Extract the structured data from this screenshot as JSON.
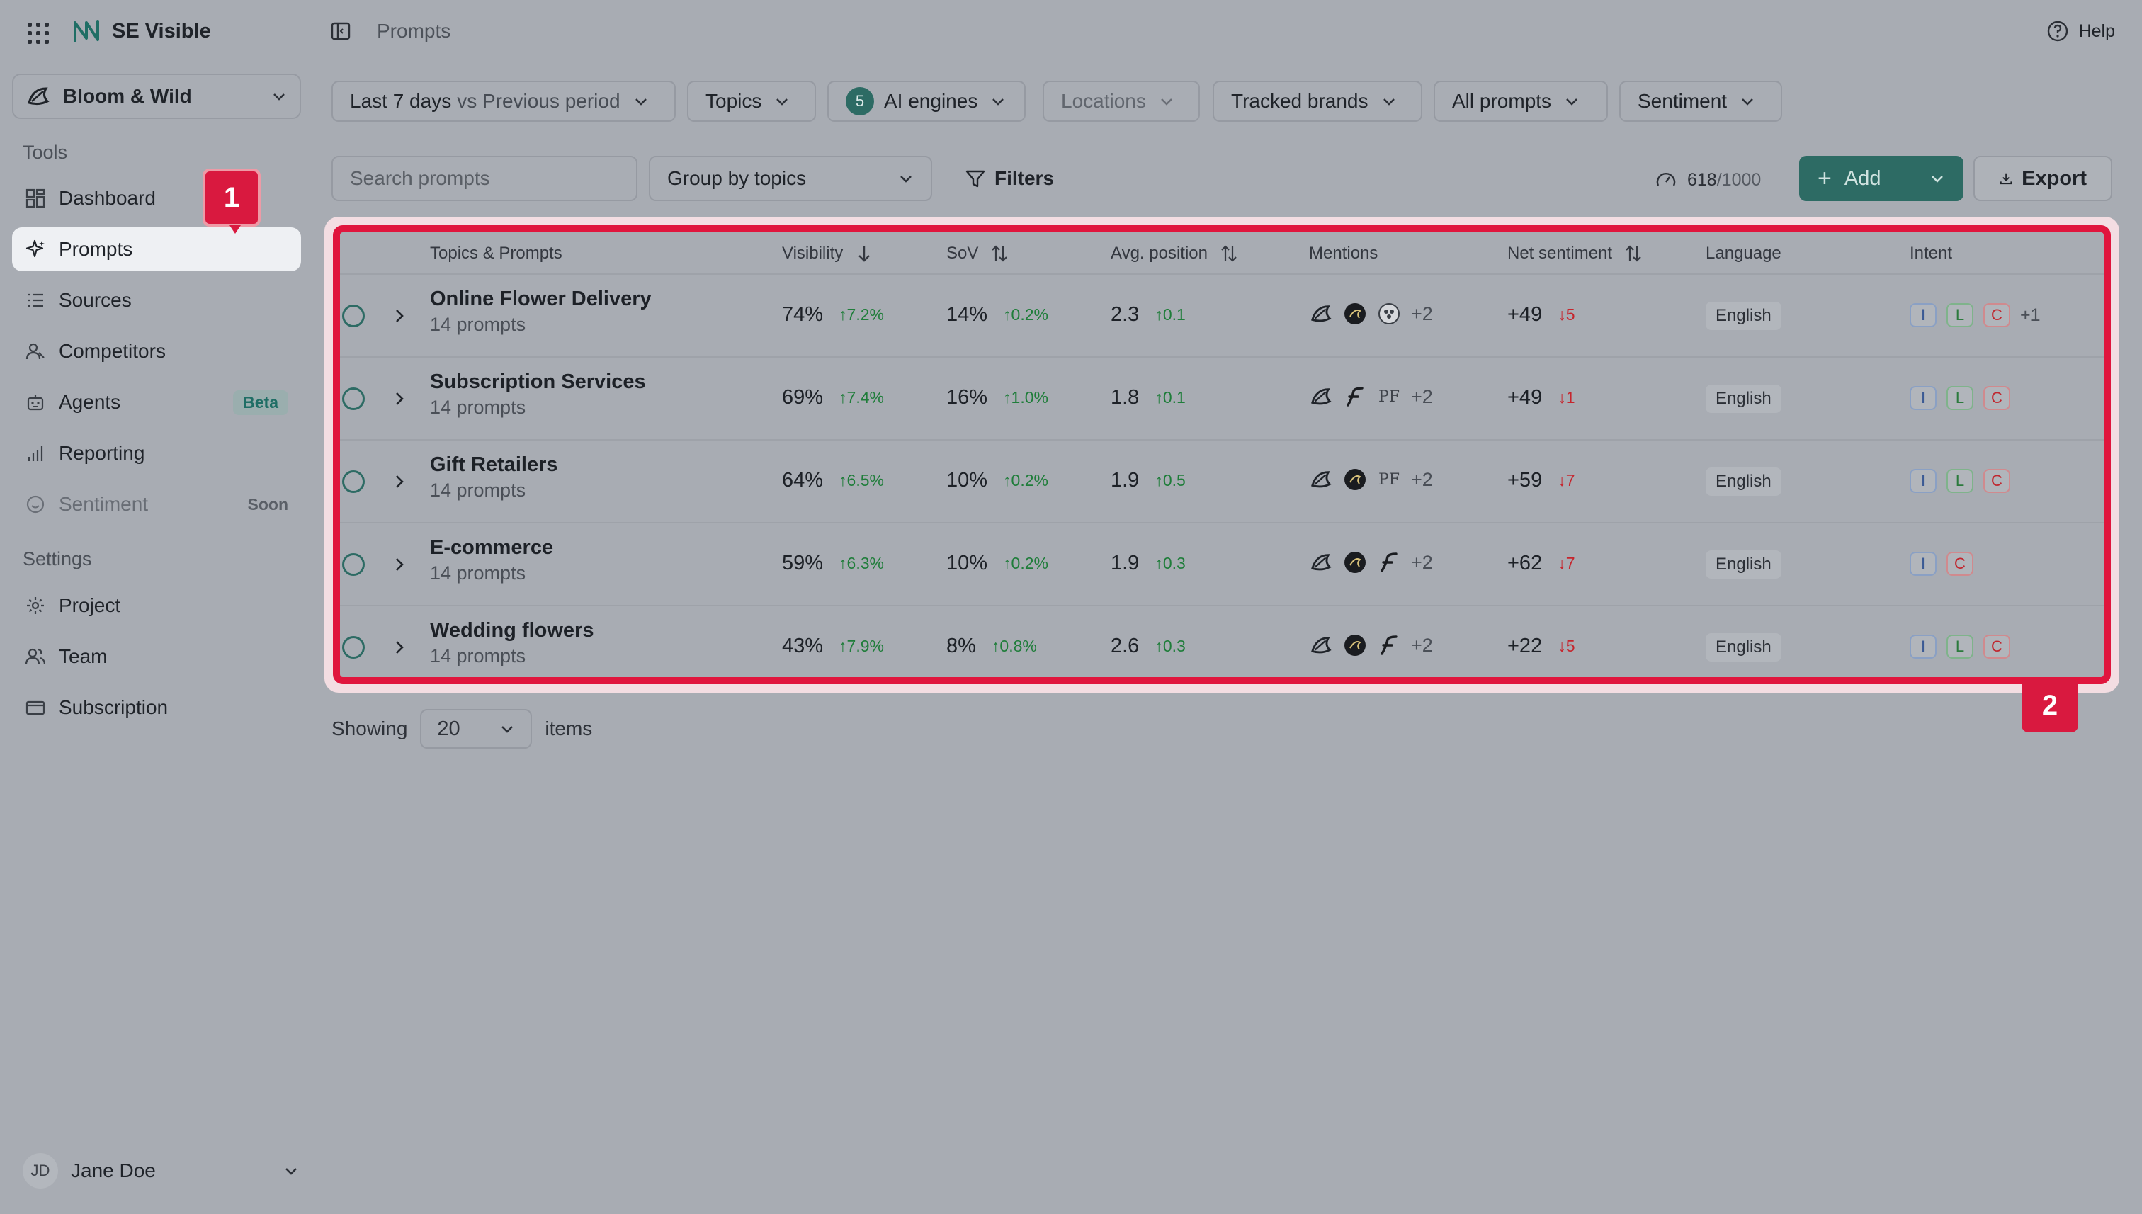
{
  "app": {
    "name": "SE Visible"
  },
  "workspace": {
    "name": "Bloom & Wild"
  },
  "sidebar": {
    "tools_title": "Tools",
    "tools": [
      {
        "label": "Dashboard",
        "icon": "dashboard-icon"
      },
      {
        "label": "Prompts",
        "icon": "sparkle-icon",
        "active": true
      },
      {
        "label": "Sources",
        "icon": "list-icon"
      },
      {
        "label": "Competitors",
        "icon": "users-icon"
      },
      {
        "label": "Agents",
        "icon": "robot-icon",
        "badge": "Beta"
      },
      {
        "label": "Reporting",
        "icon": "bar-chart-icon"
      },
      {
        "label": "Sentiment",
        "icon": "smile-icon",
        "badge": "Soon",
        "disabled": true
      }
    ],
    "settings_title": "Settings",
    "settings": [
      {
        "label": "Project",
        "icon": "gear-icon"
      },
      {
        "label": "Team",
        "icon": "team-icon"
      },
      {
        "label": "Subscription",
        "icon": "card-icon"
      }
    ],
    "user": {
      "initials": "JD",
      "name": "Jane Doe"
    }
  },
  "header": {
    "breadcrumb": "Prompts",
    "help": "Help"
  },
  "filters": {
    "period": "Last 7 days",
    "period_compare": "vs Previous period",
    "topics": "Topics",
    "engines_count": "5",
    "engines": "AI engines",
    "locations": "Locations",
    "brands": "Tracked brands",
    "prompts": "All prompts",
    "sentiment": "Sentiment"
  },
  "toolbar": {
    "search_placeholder": "Search prompts",
    "group_by": "Group by topics",
    "filters": "Filters",
    "quota_used": "618",
    "quota_max": "/1000",
    "add": "Add",
    "export": "Export"
  },
  "table": {
    "columns": {
      "topic": "Topics & Prompts",
      "visibility": "Visibility",
      "sov": "SoV",
      "avg_position": "Avg. position",
      "mentions": "Mentions",
      "net_sentiment": "Net sentiment",
      "language": "Language",
      "intent": "Intent"
    },
    "rows": [
      {
        "title": "Online Flower Delivery",
        "sub": "14 prompts",
        "visibility": "74%",
        "visibility_delta": "↑7.2%",
        "sov": "14%",
        "sov_delta": "↑0.2%",
        "pos": "2.3",
        "pos_delta": "↑0.1",
        "mentions": [
          "bloom-wild-logo",
          "dark-circle-logo",
          "flower-circle-logo"
        ],
        "mentions_more": "+2",
        "sentiment": "+49",
        "sentiment_delta": "↓5",
        "language": "English",
        "intent": [
          "I",
          "L",
          "C"
        ],
        "intent_more": "+1"
      },
      {
        "title": "Subscription Services",
        "sub": "14 prompts",
        "visibility": "69%",
        "visibility_delta": "↑7.4%",
        "sov": "16%",
        "sov_delta": "↑1.0%",
        "pos": "1.8",
        "pos_delta": "↑0.1",
        "mentions": [
          "bloom-wild-logo",
          "f-logo",
          "pf-logo"
        ],
        "mentions_more": "+2",
        "sentiment": "+49",
        "sentiment_delta": "↓1",
        "language": "English",
        "intent": [
          "I",
          "L",
          "C"
        ],
        "intent_more": ""
      },
      {
        "title": "Gift Retailers",
        "sub": "14 prompts",
        "visibility": "64%",
        "visibility_delta": "↑6.5%",
        "sov": "10%",
        "sov_delta": "↑0.2%",
        "pos": "1.9",
        "pos_delta": "↑0.5",
        "mentions": [
          "bloom-wild-logo",
          "dark-circle-logo",
          "pf-logo"
        ],
        "mentions_more": "+2",
        "sentiment": "+59",
        "sentiment_delta": "↓7",
        "language": "English",
        "intent": [
          "I",
          "L",
          "C"
        ],
        "intent_more": ""
      },
      {
        "title": "E-commerce",
        "sub": "14 prompts",
        "visibility": "59%",
        "visibility_delta": "↑6.3%",
        "sov": "10%",
        "sov_delta": "↑0.2%",
        "pos": "1.9",
        "pos_delta": "↑0.3",
        "mentions": [
          "bloom-wild-logo",
          "dark-circle-logo",
          "f-logo"
        ],
        "mentions_more": "+2",
        "sentiment": "+62",
        "sentiment_delta": "↓7",
        "language": "English",
        "intent": [
          "I",
          "C"
        ],
        "intent_more": ""
      },
      {
        "title": "Wedding flowers",
        "sub": "14 prompts",
        "visibility": "43%",
        "visibility_delta": "↑7.9%",
        "sov": "8%",
        "sov_delta": "↑0.8%",
        "pos": "2.6",
        "pos_delta": "↑0.3",
        "mentions": [
          "bloom-wild-logo",
          "dark-circle-logo",
          "f-logo"
        ],
        "mentions_more": "+2",
        "sentiment": "+22",
        "sentiment_delta": "↓5",
        "language": "English",
        "intent": [
          "I",
          "L",
          "C"
        ],
        "intent_more": ""
      }
    ]
  },
  "pager": {
    "showing": "Showing",
    "size": "20",
    "items": "items"
  },
  "callouts": {
    "one": "1",
    "two": "2"
  },
  "colors": {
    "accent": "#2d6b64",
    "highlight": "#e0153d",
    "up": "#1f7d3a",
    "down": "#c6252d"
  }
}
